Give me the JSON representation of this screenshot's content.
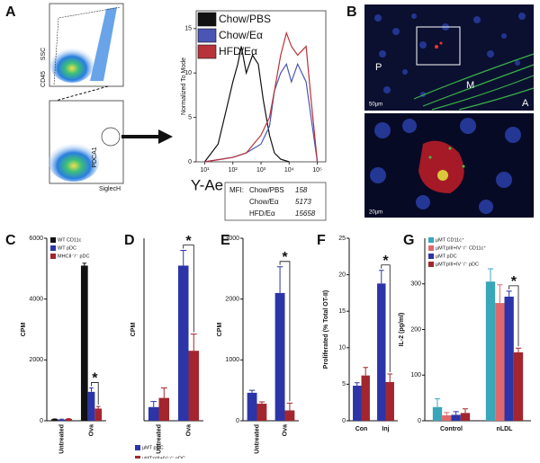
{
  "chart_data": [
    {
      "type": "line",
      "panel": "A",
      "ylabel": "Normalized To Mode",
      "xlabel": "Y-Ae",
      "xscale": "log",
      "xlim": [
        5,
        200000
      ],
      "ylim": [
        0,
        17
      ],
      "yticks": [
        0,
        5,
        10,
        15
      ],
      "xticks": [
        {
          "value": 10,
          "label": "10¹"
        },
        {
          "value": 100,
          "label": "10²"
        },
        {
          "value": 1000,
          "label": "10³"
        },
        {
          "value": 10000,
          "label": "10⁴"
        },
        {
          "value": 100000,
          "label": "10⁵"
        }
      ],
      "legend": "upper left",
      "series": [
        {
          "name": "Chow/PBS",
          "color": "#111111",
          "x": [
            10,
            30,
            60,
            100,
            150,
            200,
            300,
            500,
            800,
            1200,
            2000,
            3000,
            5000,
            10000
          ],
          "values": [
            0,
            2,
            6,
            9,
            11,
            13,
            10,
            12,
            11,
            7,
            3,
            1,
            0.3,
            0
          ]
        },
        {
          "name": "Chow/Eα",
          "color": "#4a55b5",
          "x": [
            10,
            100,
            300,
            1000,
            2000,
            3000,
            5000,
            8000,
            12000,
            20000,
            40000,
            60000,
            100000
          ],
          "values": [
            0,
            0.5,
            1,
            2,
            4,
            8,
            10,
            11,
            9,
            11,
            9,
            5,
            0
          ]
        },
        {
          "name": "HFD/Eα",
          "color": "#b8323a",
          "x": [
            10,
            100,
            300,
            1000,
            2000,
            3000,
            5000,
            8000,
            12000,
            20000,
            40000,
            60000,
            100000
          ],
          "values": [
            0,
            0.5,
            1,
            3,
            5,
            8,
            12,
            14.5,
            13,
            12,
            13,
            7,
            0
          ]
        }
      ]
    },
    {
      "type": "bar",
      "panel": "C",
      "ylabel": "CPM",
      "categories": [
        "Untreated",
        "Ova"
      ],
      "ylim": [
        0,
        6000
      ],
      "yticks": [
        0,
        2000,
        4000,
        6000
      ],
      "legend": "upper left",
      "annotation": "*",
      "series": [
        {
          "name": "WT CD11c",
          "color": "#111111",
          "values": [
            50,
            5100
          ],
          "errors": [
            10,
            80
          ]
        },
        {
          "name": "WT pDC",
          "color": "#2b35a8",
          "values": [
            40,
            950
          ],
          "errors": [
            10,
            130
          ]
        },
        {
          "name": "MHCII⁻/⁻ pDC",
          "color": "#a3262e",
          "values": [
            60,
            400
          ],
          "errors": [
            10,
            70
          ]
        }
      ]
    },
    {
      "type": "bar",
      "panel": "D",
      "ylabel": "CPM",
      "categories": [
        "Untreated",
        "Ova"
      ],
      "ylim": [
        0,
        6000
      ],
      "legend": "below",
      "annotation": "*",
      "series": [
        {
          "name": "µMT pDC",
          "color": "#2b35a8",
          "values": [
            450,
            5100
          ],
          "errors": [
            180,
            500
          ]
        },
        {
          "name": "µMT:pIII+IV⁻/⁻ pDC",
          "color": "#a3262e",
          "values": [
            750,
            2300
          ],
          "errors": [
            330,
            550
          ]
        }
      ]
    },
    {
      "type": "bar",
      "panel": "E",
      "ylabel": "CPM",
      "categories": [
        "Untreated",
        "Ova"
      ],
      "ylim": [
        0,
        3000
      ],
      "yticks": [
        0,
        1000,
        2000,
        3000
      ],
      "annotation": "*",
      "series": [
        {
          "color": "#2b35a8",
          "values": [
            460,
            2100
          ],
          "errors": [
            40,
            430
          ]
        },
        {
          "color": "#a3262e",
          "values": [
            280,
            170
          ],
          "errors": [
            30,
            120
          ]
        }
      ]
    },
    {
      "type": "bar",
      "panel": "F",
      "ylabel": "Proliferated (% Total OT-II)",
      "categories": [
        "Con",
        "Inj"
      ],
      "ylim": [
        0,
        25
      ],
      "yticks": [
        0,
        5,
        10,
        15,
        20,
        25
      ],
      "annotation": "*",
      "series": [
        {
          "color": "#2b35a8",
          "values": [
            4.8,
            18.8
          ],
          "errors": [
            0.4,
            1.8
          ]
        },
        {
          "color": "#a3262e",
          "values": [
            6.2,
            5.3
          ],
          "errors": [
            1.1,
            1.1
          ]
        }
      ]
    },
    {
      "type": "bar",
      "panel": "G",
      "ylabel": "IL-2 (pg/ml)",
      "categories": [
        "Control",
        "nLDL"
      ],
      "ylim": [
        0,
        400
      ],
      "yticks": [
        0,
        100,
        200,
        300
      ],
      "legend": "upper left",
      "annotation": "*",
      "series": [
        {
          "name": "µMT CD11c⁺",
          "color": "#3aa6b9",
          "values": [
            30,
            305
          ],
          "errors": [
            18,
            28
          ]
        },
        {
          "name": "µMT:pIII+IV⁻/⁻ CD11c⁺",
          "color": "#e0686a",
          "values": [
            12,
            258
          ],
          "errors": [
            6,
            40
          ]
        },
        {
          "name": "µMT pDC",
          "color": "#2b35a8",
          "values": [
            13,
            272
          ],
          "errors": [
            7,
            12
          ]
        },
        {
          "name": "µMT:pIII+IV⁻/⁻ pDC",
          "color": "#a3262e",
          "values": [
            17,
            150
          ],
          "errors": [
            9,
            9
          ]
        }
      ]
    }
  ],
  "flow": {
    "top_x": "CD45",
    "top_y": "SSC",
    "bottom_x": "SiglecH",
    "bottom_y": "PDCA1"
  },
  "mfi": {
    "label": "MFI:",
    "rows": [
      {
        "name": "Chow/PBS",
        "value": 158
      },
      {
        "name": "Chow/Eα",
        "value": 5173
      },
      {
        "name": "HFD/Eα",
        "value": 15658
      }
    ]
  },
  "micrograph": {
    "panel": "B",
    "regions": [
      "P",
      "M",
      "A"
    ],
    "scale_bars": [
      "50µm",
      "20µm"
    ]
  }
}
